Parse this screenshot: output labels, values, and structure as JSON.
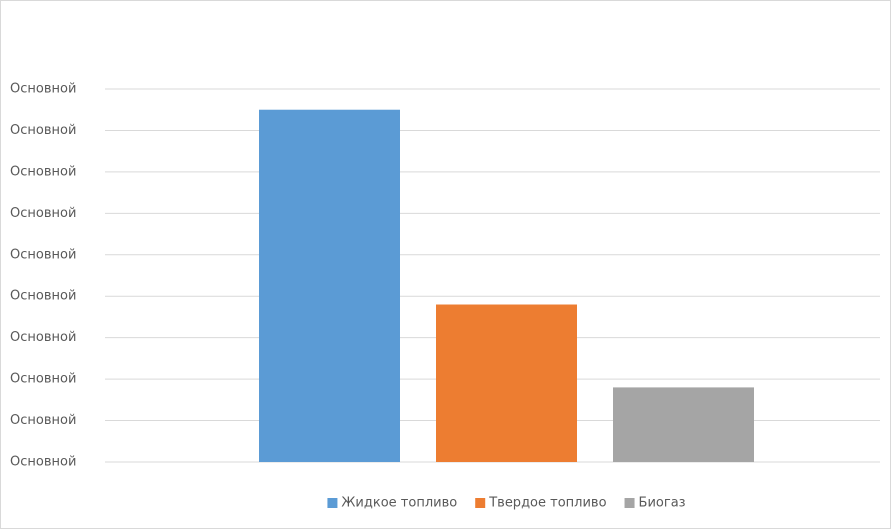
{
  "chart_data": {
    "type": "bar",
    "categories": [
      null
    ],
    "series": [
      {
        "name": "Жидкое топливо",
        "color": "#5b9bd5",
        "values": [
          8.5
        ]
      },
      {
        "name": "Твердое топливо",
        "color": "#ed7d31",
        "values": [
          3.8
        ]
      },
      {
        "name": "Биогаз",
        "color": "#a5a5a5",
        "values": [
          1.8
        ]
      }
    ],
    "ylim": [
      0,
      9
    ],
    "yticks": [
      {
        "value": 0,
        "label": "Основной"
      },
      {
        "value": 1,
        "label": "Основной"
      },
      {
        "value": 2,
        "label": "Основной"
      },
      {
        "value": 3,
        "label": "Основной"
      },
      {
        "value": 4,
        "label": "Основной"
      },
      {
        "value": 5,
        "label": "Основной"
      },
      {
        "value": 6,
        "label": "Основной"
      },
      {
        "value": 7,
        "label": "Основной"
      },
      {
        "value": 8,
        "label": "Основной"
      },
      {
        "value": 9,
        "label": "Основной"
      }
    ],
    "grid": true,
    "legend": "bottom"
  }
}
